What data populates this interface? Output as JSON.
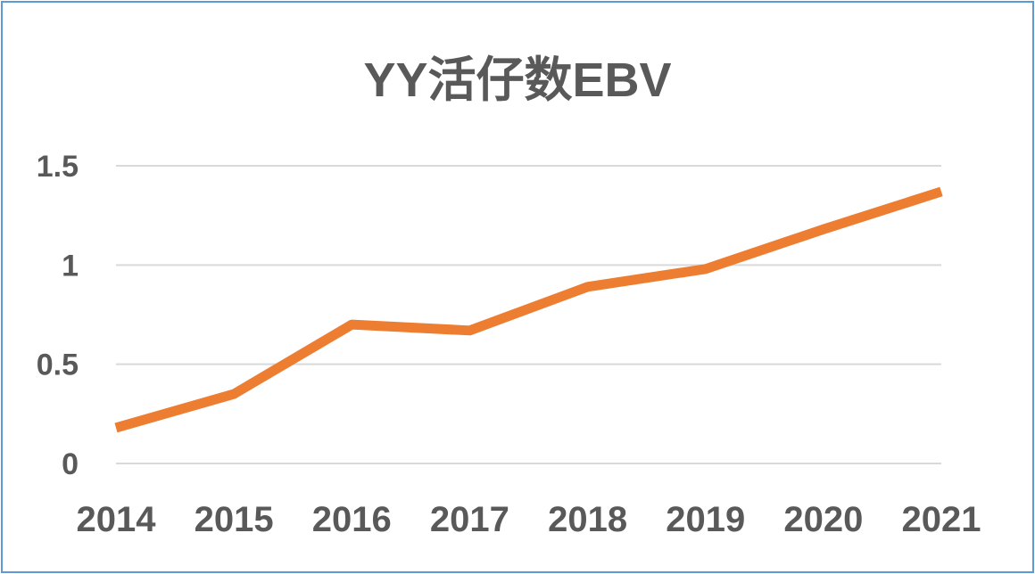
{
  "chart_data": {
    "type": "line",
    "title": "YY活仔数EBV",
    "categories": [
      "2014",
      "2015",
      "2016",
      "2017",
      "2018",
      "2019",
      "2020",
      "2021"
    ],
    "series": [
      {
        "values": [
          0.18,
          0.35,
          0.7,
          0.67,
          0.89,
          0.98,
          1.18,
          1.37
        ],
        "color": "#ed7d31"
      }
    ],
    "yticks": [
      "0",
      "0.5",
      "1",
      "1.5"
    ],
    "ylim": [
      0,
      1.5
    ],
    "grid": true,
    "legend": "none",
    "colors": {
      "line": "#ed7d31",
      "grid": "#d9d9d9",
      "text": "#595959",
      "border": "#5b9bd5"
    }
  }
}
